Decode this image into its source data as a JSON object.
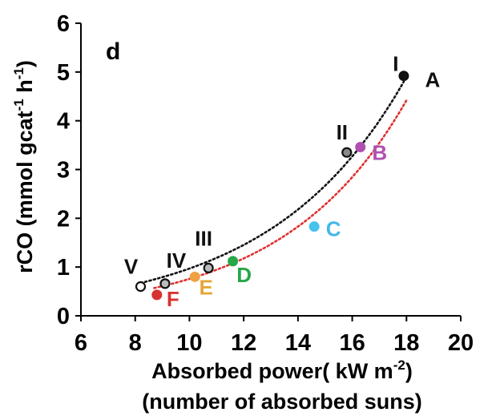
{
  "chart_data": {
    "type": "scatter",
    "panel_label": "d",
    "xlabel_line1": "Absorbed power( kW m",
    "xlabel_sup": "-2",
    "xlabel_close": ")",
    "xlabel_line2": "(number of absorbed suns)",
    "ylabel_main": "rCO (mmol gcat",
    "ylabel_sup1": "-1",
    "ylabel_mid": " h",
    "ylabel_sup2": "-1",
    "ylabel_close": ")",
    "xlim": [
      6,
      20
    ],
    "ylim": [
      0,
      6
    ],
    "xticks": [
      "6",
      "8",
      "10",
      "12",
      "14",
      "16",
      "18",
      "20"
    ],
    "yticks": [
      "0",
      "1",
      "2",
      "3",
      "4",
      "5",
      "6"
    ],
    "grid": false,
    "series": [
      {
        "labels": [
          "V",
          "IV",
          "III",
          "II",
          "I"
        ],
        "x": [
          8.2,
          9.1,
          10.7,
          15.8,
          17.9
        ],
        "y": [
          0.6,
          0.66,
          0.98,
          3.35,
          4.92
        ],
        "colors": [
          "#ffffff",
          "#bbbbbb",
          "#bbbbbb",
          "#888888",
          "#000000"
        ],
        "label_color": "#111111",
        "trend_color": "#111111"
      },
      {
        "labels": [
          "F",
          "E",
          "D",
          "C",
          "B",
          "A"
        ],
        "x": [
          8.8,
          10.2,
          11.6,
          14.6,
          16.3,
          17.9
        ],
        "y": [
          0.43,
          0.8,
          1.12,
          1.83,
          3.46,
          4.92
        ],
        "colors": [
          "#d83232",
          "#f0a040",
          "#27a64a",
          "#45c3ee",
          "#b050b0",
          "#111111"
        ],
        "label_colors": [
          "#d83232",
          "#e6a63a",
          "#27a64a",
          "#45b7e8",
          "#b050b0",
          "#111111"
        ],
        "trend_color": "#e03030"
      }
    ],
    "trend_lines": [
      {
        "type": "exponential",
        "a": 0.128,
        "b": 0.2025,
        "from": 8.2,
        "to": 17.9,
        "color": "#111111"
      },
      {
        "type": "exponential",
        "a": 0.0835,
        "b": 0.2205,
        "from": 8.7,
        "to": 18.0,
        "color": "#e03030"
      }
    ]
  }
}
